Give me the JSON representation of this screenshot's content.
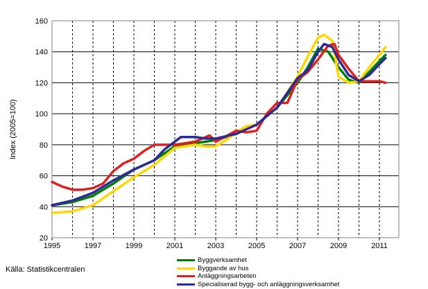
{
  "chart_data": {
    "type": "line",
    "title": "",
    "xlabel": "",
    "ylabel": "Index (2005=100)",
    "xlim": [
      1995,
      2011.95
    ],
    "ylim": [
      20,
      160
    ],
    "x_ticks": [
      "1995",
      "1997",
      "1999",
      "2001",
      "2003",
      "2005",
      "2007",
      "2009",
      "2011"
    ],
    "y_ticks": [
      "20",
      "40",
      "60",
      "80",
      "100",
      "120",
      "140",
      "160"
    ],
    "grid": "horizontal solid, vertical dashed yearly",
    "legend_position": "bottom",
    "series": [
      {
        "name": "Byggverksamhet",
        "color": "#008000",
        "x": [
          1995,
          1996,
          1997,
          1998,
          1999,
          2000,
          2001,
          2002,
          2003,
          2004,
          2005,
          2006,
          2007,
          2007.5,
          2008,
          2008.5,
          2009,
          2009.5,
          2010,
          2010.5,
          2011,
          2011.3
        ],
        "y": [
          41,
          43,
          47,
          55,
          64,
          70,
          79,
          81,
          83,
          87,
          93,
          104,
          120,
          130,
          142,
          140,
          130,
          122,
          120,
          127,
          134,
          138
        ]
      },
      {
        "name": "Byggande av hus",
        "color": "#ffd700",
        "x": [
          1995,
          1996,
          1997,
          1998,
          1999,
          2000,
          2001,
          2002,
          2002.5,
          2003,
          2003.5,
          2004,
          2004.5,
          2005,
          2006,
          2007,
          2007.5,
          2008,
          2008.3,
          2008.7,
          2009,
          2009.5,
          2010,
          2010.5,
          2011,
          2011.3
        ],
        "y": [
          36,
          37,
          41,
          50,
          59,
          67,
          78,
          80,
          79,
          79,
          83,
          88,
          92,
          93,
          104,
          124,
          137,
          149,
          151,
          147,
          124,
          120,
          121,
          130,
          138,
          143
        ]
      },
      {
        "name": "Anläggningsarbeten",
        "color": "#e02020",
        "x": [
          1995,
          1995.5,
          1996,
          1996.5,
          1997,
          1997.5,
          1998,
          1998.5,
          1999,
          1999.5,
          2000,
          2001,
          2002,
          2002.7,
          2003,
          2004,
          2004.5,
          2005,
          2005.5,
          2006,
          2006.5,
          2007,
          2007.5,
          2008,
          2008.5,
          2008.8,
          2009,
          2009.5,
          2010,
          2010.5,
          2011,
          2011.3
        ],
        "y": [
          56,
          53,
          51,
          51,
          52,
          55,
          63,
          68,
          71,
          76,
          80,
          80,
          82,
          86,
          82,
          89,
          88,
          89,
          100,
          107,
          107,
          122,
          127,
          135,
          144,
          145,
          138,
          129,
          121,
          121,
          121,
          120
        ]
      },
      {
        "name": "Specialiserad bygg- och anläggningsverksamhet",
        "color": "#2a2a9a",
        "x": [
          1995,
          1996,
          1997,
          1998,
          1999,
          2000,
          2000.5,
          2001,
          2001.3,
          2002,
          2002.5,
          2003,
          2004,
          2005,
          2006,
          2007,
          2007.5,
          2008,
          2008.3,
          2008.7,
          2009,
          2009.5,
          2010,
          2010.5,
          2011,
          2011.3
        ],
        "y": [
          41,
          44,
          49,
          57,
          64,
          70,
          77,
          82,
          85,
          85,
          84,
          84,
          87,
          93,
          104,
          123,
          128,
          140,
          145,
          143,
          135,
          125,
          121,
          125,
          132,
          136
        ]
      }
    ]
  },
  "source": "Källa: Statistikcentralen"
}
